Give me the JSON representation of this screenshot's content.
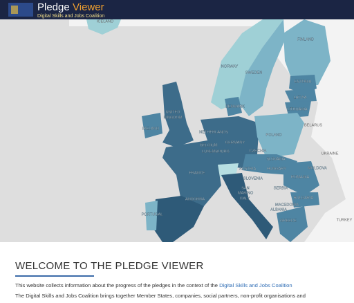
{
  "header": {
    "title_first": "Pledge",
    "title_second": "Viewer",
    "subtitle": "Digital Skills and Jobs Coalition"
  },
  "map": {
    "labels": [
      "ICELAND",
      "NORWAY",
      "SWEDEN",
      "FINLAND",
      "ESTONIA",
      "LATVIA",
      "LITHUANIA",
      "DENMARK",
      "UNITED",
      "KINGDOM",
      "IRELAND",
      "NETHERLANDS",
      "BELGIUM",
      "LUXEMBOURG",
      "GERMANY",
      "POLAND",
      "BELARUS",
      "UKRAINE",
      "CZECHIA",
      "SLOVAKIA",
      "AUSTRIA",
      "HUNGARY",
      "MOLDOVA",
      "ROMANIA",
      "FRANCE",
      "SLOVENIA",
      "SERBIA",
      "SAN",
      "MARINO",
      "ITALY",
      "BULGARIA",
      "ANDORRA",
      "MACEDONIA",
      "ALBANIA",
      "PORTUGAL",
      "GREECE",
      "TURKEY"
    ]
  },
  "content": {
    "heading": "WELCOME TO THE PLEDGE VIEWER",
    "paragraph_1": "This website collects information about the progress of the pledges in the context of the",
    "paragraph_1_link": "Digital Skills and Jobs Coalition",
    "paragraph_2": "The Digital Skills and Jobs Coalition brings together Member States, companies, social partners, non-profit organisations and"
  }
}
